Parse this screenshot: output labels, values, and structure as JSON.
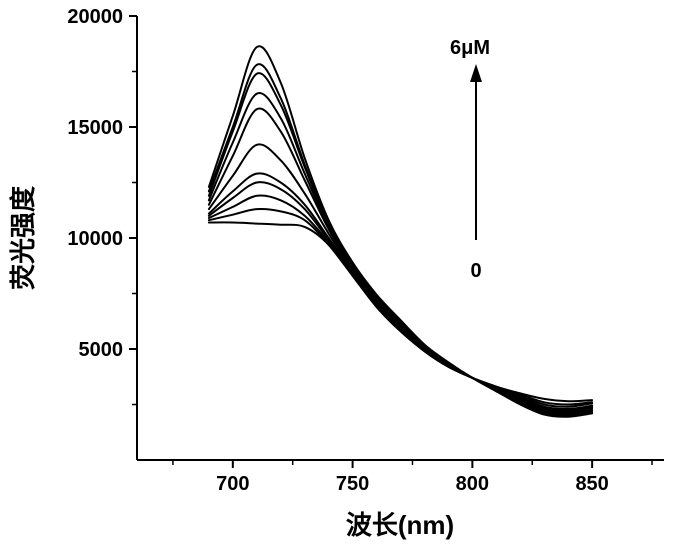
{
  "chart_data": {
    "type": "line",
    "xlabel": "波长(nm)",
    "ylabel": "荧光强度",
    "xlim": [
      660,
      880
    ],
    "ylim": [
      0,
      20000
    ],
    "x_ticks": [
      700,
      750,
      800,
      850
    ],
    "y_ticks": [
      5000,
      10000,
      15000,
      20000
    ],
    "grid": false,
    "legend": "none",
    "annotations": {
      "arrow_top": "6μM",
      "arrow_bottom": "0"
    },
    "x": [
      690,
      700,
      710,
      720,
      730,
      740,
      750,
      760,
      770,
      780,
      790,
      800,
      810,
      820,
      830,
      840,
      850
    ],
    "series": [
      {
        "values": [
          10700,
          10700,
          10650,
          10600,
          10500,
          9700,
          8300,
          6900,
          5800,
          4900,
          4200,
          3700,
          3300,
          3000,
          2750,
          2650,
          2700
        ]
      },
      {
        "values": [
          10800,
          11050,
          11300,
          11200,
          10800,
          9700,
          8300,
          6900,
          5800,
          4900,
          4200,
          3700,
          3300,
          2950,
          2600,
          2500,
          2600
        ]
      },
      {
        "values": [
          10900,
          11400,
          11900,
          11700,
          11000,
          9800,
          8350,
          6950,
          5850,
          4900,
          4200,
          3700,
          3300,
          2900,
          2500,
          2400,
          2550
        ]
      },
      {
        "values": [
          11000,
          11800,
          12500,
          12200,
          11300,
          9900,
          8400,
          7000,
          5900,
          5000,
          4250,
          3700,
          3250,
          2850,
          2400,
          2300,
          2450
        ]
      },
      {
        "values": [
          11100,
          12100,
          12900,
          12500,
          11500,
          10000,
          8450,
          7050,
          5950,
          5000,
          4250,
          3700,
          3250,
          2800,
          2350,
          2250,
          2400
        ]
      },
      {
        "values": [
          11300,
          12800,
          14200,
          13500,
          12000,
          10200,
          8550,
          7100,
          6000,
          5050,
          4300,
          3700,
          3200,
          2750,
          2300,
          2200,
          2350
        ]
      },
      {
        "values": [
          11500,
          13700,
          15800,
          14800,
          12600,
          10400,
          8650,
          7200,
          6050,
          5100,
          4300,
          3700,
          3200,
          2700,
          2250,
          2150,
          2300
        ]
      },
      {
        "values": [
          11700,
          14300,
          16500,
          15400,
          12900,
          10500,
          8700,
          7250,
          6100,
          5100,
          4350,
          3700,
          3150,
          2650,
          2200,
          2100,
          2250
        ]
      },
      {
        "values": [
          11900,
          14800,
          17400,
          16000,
          13200,
          10600,
          8750,
          7300,
          6150,
          5150,
          4350,
          3700,
          3150,
          2600,
          2150,
          2050,
          2200
        ]
      },
      {
        "values": [
          12100,
          15000,
          17800,
          16300,
          13300,
          10650,
          8800,
          7350,
          6200,
          5150,
          4350,
          3700,
          3100,
          2550,
          2100,
          2000,
          2150
        ]
      },
      {
        "values": [
          12300,
          15500,
          18600,
          17000,
          13600,
          10800,
          8900,
          7450,
          6300,
          5200,
          4400,
          3700,
          3100,
          2500,
          2050,
          1950,
          2100
        ]
      }
    ]
  }
}
